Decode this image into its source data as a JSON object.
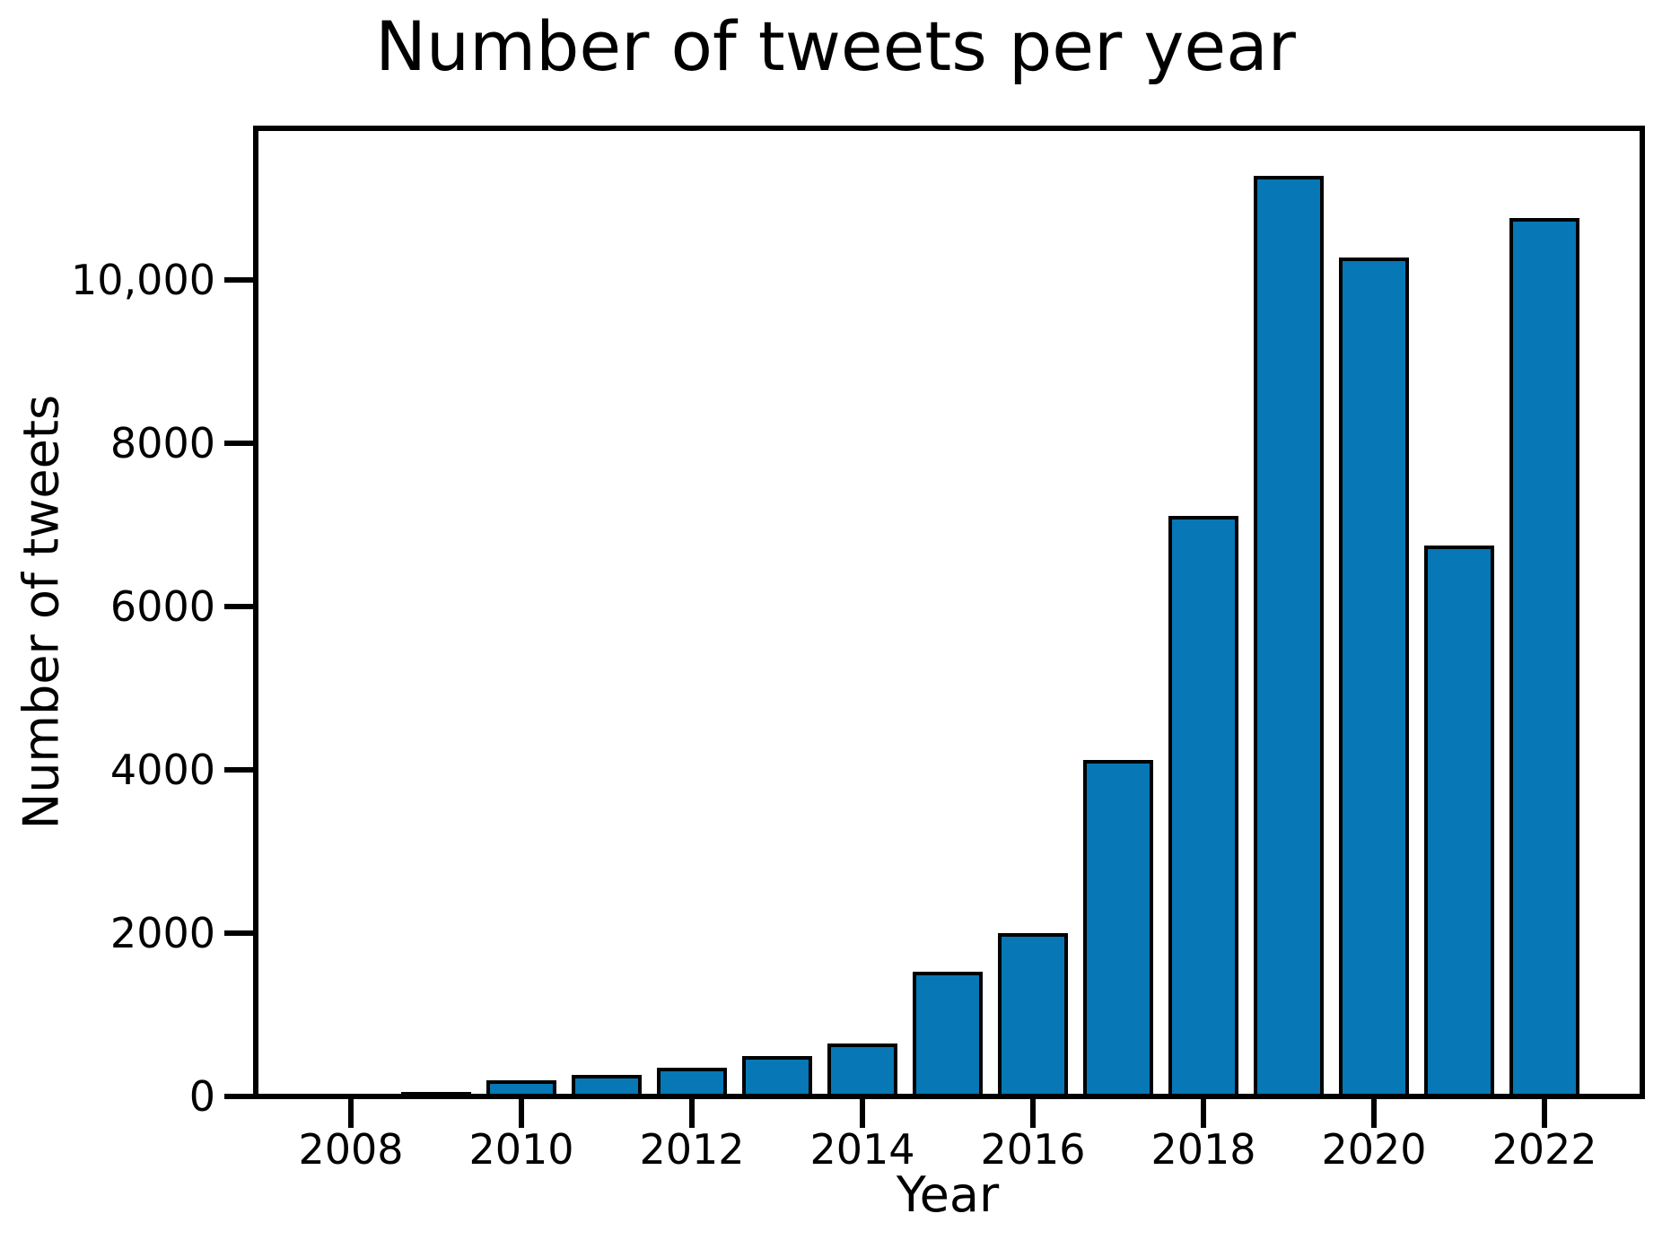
{
  "page": {
    "background": "#ffffff"
  },
  "chart_data": {
    "type": "bar",
    "title": "Number of tweets per year",
    "xlabel": "Year",
    "ylabel": "Number of tweets",
    "categories": [
      "2008",
      "2009",
      "2010",
      "2011",
      "2012",
      "2013",
      "2014",
      "2015",
      "2016",
      "2017",
      "2018",
      "2019",
      "2020",
      "2021",
      "2022"
    ],
    "values": [
      10,
      55,
      200,
      265,
      350,
      495,
      650,
      1530,
      2000,
      4120,
      7110,
      11270,
      10280,
      6750,
      10760
    ],
    "x_tick_labels": [
      "2008",
      "2010",
      "2012",
      "2014",
      "2016",
      "2018",
      "2020",
      "2022"
    ],
    "y_tick_labels": [
      "0",
      "2000",
      "4000",
      "6000",
      "8000",
      "10,000"
    ],
    "y_tick_values": [
      0,
      2000,
      4000,
      6000,
      8000,
      10000
    ],
    "xlim": [
      2006.9,
      2023.1
    ],
    "ylim": [
      0,
      11860
    ],
    "grid": false,
    "legend": false,
    "bar_color": "#0777b5",
    "bar_edge_color": "#000000",
    "axis_color": "#000000",
    "background_color": "#ffffff"
  }
}
